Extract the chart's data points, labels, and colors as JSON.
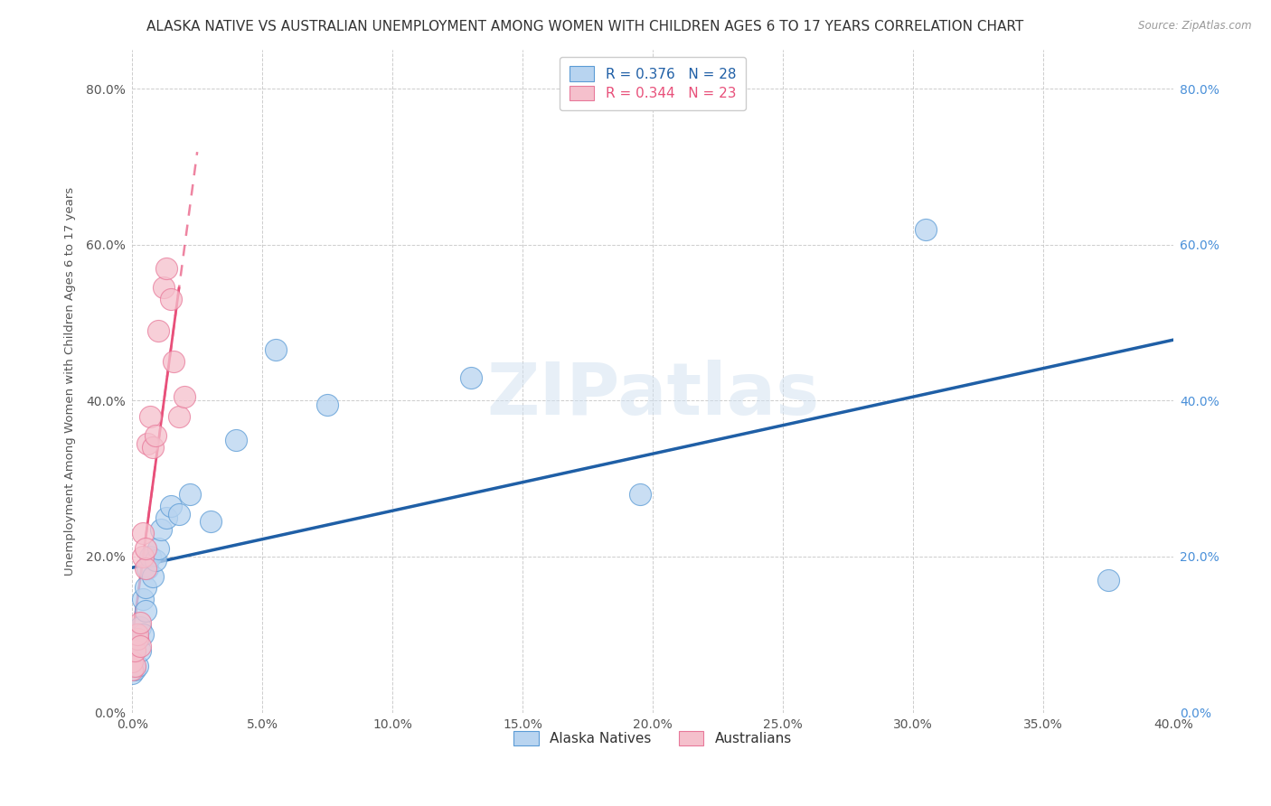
{
  "title": "ALASKA NATIVE VS AUSTRALIAN UNEMPLOYMENT AMONG WOMEN WITH CHILDREN AGES 6 TO 17 YEARS CORRELATION CHART",
  "source": "Source: ZipAtlas.com",
  "ylabel": "Unemployment Among Women with Children Ages 6 to 17 years",
  "xlim": [
    0.0,
    0.4
  ],
  "ylim": [
    0.0,
    0.85
  ],
  "xticks": [
    0.0,
    0.05,
    0.1,
    0.15,
    0.2,
    0.25,
    0.3,
    0.35,
    0.4
  ],
  "yticks": [
    0.0,
    0.2,
    0.4,
    0.6,
    0.8
  ],
  "alaska_natives": {
    "x": [
      0.0,
      0.001,
      0.002,
      0.002,
      0.003,
      0.003,
      0.004,
      0.004,
      0.005,
      0.005,
      0.006,
      0.007,
      0.008,
      0.009,
      0.01,
      0.011,
      0.013,
      0.015,
      0.018,
      0.022,
      0.03,
      0.04,
      0.055,
      0.075,
      0.13,
      0.195,
      0.305,
      0.375
    ],
    "y": [
      0.05,
      0.055,
      0.06,
      0.095,
      0.08,
      0.11,
      0.1,
      0.145,
      0.13,
      0.16,
      0.185,
      0.2,
      0.175,
      0.195,
      0.21,
      0.235,
      0.25,
      0.265,
      0.255,
      0.28,
      0.245,
      0.35,
      0.465,
      0.395,
      0.43,
      0.28,
      0.62,
      0.17
    ],
    "R": 0.376,
    "N": 28,
    "dot_color": "#b8d4f0",
    "edge_color": "#5b9bd5",
    "line_color": "#1f5fa6"
  },
  "australians": {
    "x": [
      0.0,
      0.0,
      0.001,
      0.001,
      0.002,
      0.002,
      0.003,
      0.003,
      0.004,
      0.004,
      0.005,
      0.005,
      0.006,
      0.007,
      0.008,
      0.009,
      0.01,
      0.012,
      0.013,
      0.015,
      0.016,
      0.018,
      0.02
    ],
    "y": [
      0.055,
      0.065,
      0.06,
      0.08,
      0.095,
      0.1,
      0.085,
      0.115,
      0.2,
      0.23,
      0.185,
      0.21,
      0.345,
      0.38,
      0.34,
      0.355,
      0.49,
      0.545,
      0.57,
      0.53,
      0.45,
      0.38,
      0.405
    ],
    "R": 0.344,
    "N": 23,
    "dot_color": "#f5c0cc",
    "edge_color": "#e8799a",
    "line_color": "#e8507a"
  },
  "watermark": "ZIPatlas",
  "background_color": "#ffffff",
  "grid_color": "#c8c8c8",
  "title_fontsize": 11,
  "axis_label_fontsize": 9.5,
  "tick_fontsize": 10,
  "legend_fontsize": 11
}
